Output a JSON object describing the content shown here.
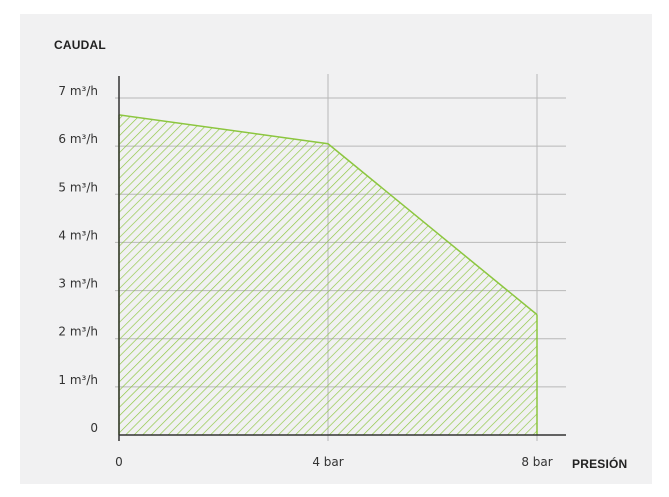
{
  "chart_data": {
    "type": "area",
    "xlabel": "PRESIÓN",
    "ylabel": "CAUDAL",
    "x": [
      0,
      4,
      8
    ],
    "y": [
      6.65,
      6.05,
      2.5
    ],
    "xlim": [
      0,
      8
    ],
    "ylim": [
      0,
      7
    ],
    "x_ticks": [
      {
        "value": 0,
        "label": "0"
      },
      {
        "value": 4,
        "label": "4 bar"
      },
      {
        "value": 8,
        "label": "8 bar"
      }
    ],
    "y_ticks": [
      {
        "value": 0,
        "label": "0"
      },
      {
        "value": 1,
        "label": "1 m³/h"
      },
      {
        "value": 2,
        "label": "2 m³/h"
      },
      {
        "value": 3,
        "label": "3 m³/h"
      },
      {
        "value": 4,
        "label": "4 m³/h"
      },
      {
        "value": 5,
        "label": "5 m³/h"
      },
      {
        "value": 6,
        "label": "6 m³/h"
      },
      {
        "value": 7,
        "label": "7 m³/h"
      }
    ],
    "grid": true,
    "fill": "diagonal-hatch",
    "colors": {
      "series": "#8cc63f",
      "grid": "#b8b8b8",
      "axis": "#333333",
      "background": "#f1f1f2"
    }
  }
}
